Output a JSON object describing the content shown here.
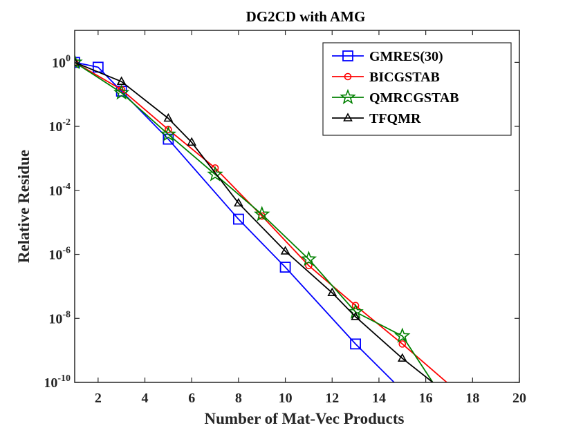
{
  "chart_data": {
    "type": "line",
    "title": "DG2CD with AMG",
    "xlabel": "Number of Mat-Vec Products",
    "ylabel": "Relative Residue",
    "xlim": [
      1,
      20
    ],
    "ylim_log10": [
      -10,
      1
    ],
    "yscale": "log",
    "grid": false,
    "legend_position": "top-right",
    "x_ticks": [
      2,
      4,
      6,
      8,
      10,
      12,
      14,
      16,
      18,
      20
    ],
    "x_tick_labels": [
      "2",
      "4",
      "6",
      "8",
      "10",
      "12",
      "14",
      "16",
      "18",
      "20"
    ],
    "y_ticks_log10": [
      0,
      -2,
      -4,
      -6,
      -8,
      -10
    ],
    "y_tick_labels": [
      {
        "base": "10",
        "exp": "0"
      },
      {
        "base": "10",
        "exp": "-2"
      },
      {
        "base": "10",
        "exp": "-4"
      },
      {
        "base": "10",
        "exp": "-6"
      },
      {
        "base": "10",
        "exp": "-8"
      },
      {
        "base": "10",
        "exp": "-10"
      }
    ],
    "series": [
      {
        "name": "GMRES(30)",
        "color": "#0000ff",
        "marker": "square",
        "x": [
          1,
          2,
          3,
          5,
          8,
          10,
          13,
          14.65
        ],
        "log10_y": [
          0,
          -0.15,
          -0.9,
          -2.4,
          -4.9,
          -6.4,
          -8.8,
          -10
        ],
        "marker_x": [
          1,
          2,
          3,
          5,
          8,
          10,
          13
        ]
      },
      {
        "name": "BICGSTAB",
        "color": "#ff0000",
        "marker": "circle",
        "x": [
          1,
          3,
          5,
          7,
          9,
          11,
          13,
          15,
          16.9
        ],
        "log10_y": [
          0,
          -0.85,
          -2.1,
          -3.3,
          -4.8,
          -6.35,
          -7.6,
          -8.8,
          -10
        ],
        "marker_x": [
          1,
          3,
          5,
          7,
          9,
          11,
          13,
          15
        ]
      },
      {
        "name": "QMRCGSTAB",
        "color": "#008000",
        "marker": "star",
        "x": [
          1,
          3,
          5,
          7,
          9,
          11,
          13,
          15,
          16.3
        ],
        "log10_y": [
          0,
          -0.95,
          -2.25,
          -3.5,
          -4.75,
          -6.15,
          -7.8,
          -8.55,
          -10
        ],
        "marker_x": [
          1,
          3,
          5,
          7,
          9,
          11,
          13,
          15
        ]
      },
      {
        "name": "TFQMR",
        "color": "#000000",
        "marker": "triangle",
        "x": [
          1,
          3,
          5,
          6,
          8,
          10,
          12,
          13,
          15,
          16.3
        ],
        "log10_y": [
          0,
          -0.6,
          -1.75,
          -2.5,
          -4.4,
          -5.9,
          -7.2,
          -7.95,
          -9.25,
          -10
        ],
        "marker_x": [
          1,
          3,
          5,
          6,
          8,
          10,
          12,
          13,
          15
        ]
      }
    ]
  }
}
